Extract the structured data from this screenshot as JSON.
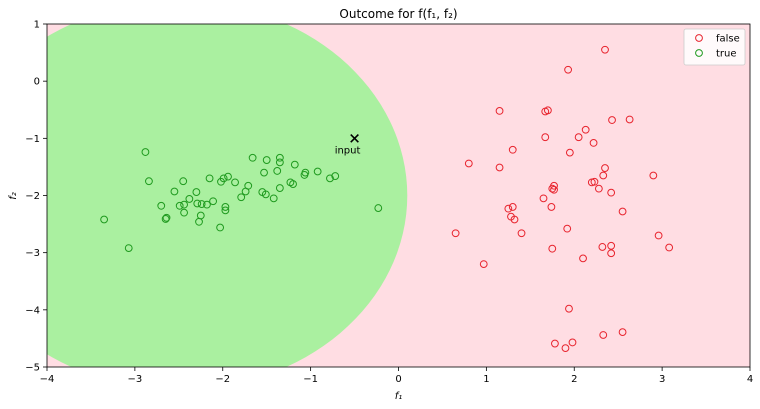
{
  "chart_data": {
    "type": "scatter",
    "title": "Outcome for f(f₁, f₂)",
    "xlabel": "f₁",
    "ylabel": "f₂",
    "xlim": [
      -4,
      4
    ],
    "ylim": [
      -5,
      1
    ],
    "xticks": [
      "−4",
      "−3",
      "−2",
      "−1",
      "0",
      "1",
      "2",
      "3",
      "4"
    ],
    "yticks": [
      "−5",
      "−4",
      "−3",
      "−2",
      "−1",
      "0",
      "1"
    ],
    "legend_position": "top-right",
    "background_regions": {
      "true_region_color": "#aaf0a0",
      "false_region_color": "#ffdde3",
      "boundary": "ellipse centered near (-2.5, -2.0), right edge at x≈0.1"
    },
    "series": [
      {
        "name": "false",
        "edge_color": "#e8242e",
        "points": [
          [
            2.35,
            0.55
          ],
          [
            1.93,
            0.2
          ],
          [
            1.15,
            -0.52
          ],
          [
            1.67,
            -0.53
          ],
          [
            1.7,
            -0.51
          ],
          [
            2.43,
            -0.68
          ],
          [
            2.63,
            -0.67
          ],
          [
            2.13,
            -0.85
          ],
          [
            1.67,
            -0.98
          ],
          [
            2.05,
            -0.98
          ],
          [
            2.22,
            -1.08
          ],
          [
            1.3,
            -1.2
          ],
          [
            1.95,
            -1.25
          ],
          [
            0.8,
            -1.44
          ],
          [
            1.15,
            -1.51
          ],
          [
            2.35,
            -1.52
          ],
          [
            2.33,
            -1.65
          ],
          [
            2.9,
            -1.65
          ],
          [
            2.2,
            -1.77
          ],
          [
            2.23,
            -1.76
          ],
          [
            1.77,
            -1.83
          ],
          [
            1.75,
            -1.88
          ],
          [
            1.77,
            -1.9
          ],
          [
            2.28,
            -1.88
          ],
          [
            2.42,
            -1.95
          ],
          [
            1.65,
            -2.05
          ],
          [
            1.74,
            -2.2
          ],
          [
            1.3,
            -2.2
          ],
          [
            1.25,
            -2.23
          ],
          [
            2.55,
            -2.28
          ],
          [
            1.28,
            -2.37
          ],
          [
            1.32,
            -2.42
          ],
          [
            1.92,
            -2.58
          ],
          [
            0.65,
            -2.66
          ],
          [
            1.4,
            -2.66
          ],
          [
            2.96,
            -2.7
          ],
          [
            2.42,
            -2.88
          ],
          [
            2.32,
            -2.9
          ],
          [
            3.08,
            -2.91
          ],
          [
            1.75,
            -2.93
          ],
          [
            2.42,
            -3.01
          ],
          [
            2.1,
            -3.1
          ],
          [
            0.97,
            -3.2
          ],
          [
            1.94,
            -3.98
          ],
          [
            2.55,
            -4.39
          ],
          [
            2.33,
            -4.44
          ],
          [
            1.98,
            -4.57
          ],
          [
            1.78,
            -4.59
          ],
          [
            1.9,
            -4.67
          ]
        ]
      },
      {
        "name": "true",
        "edge_color": "#1f9a1f",
        "points": [
          [
            -2.88,
            -1.24
          ],
          [
            -1.66,
            -1.34
          ],
          [
            -1.35,
            -1.34
          ],
          [
            -1.5,
            -1.38
          ],
          [
            -1.35,
            -1.42
          ],
          [
            -1.18,
            -1.46
          ],
          [
            -1.38,
            -1.57
          ],
          [
            -0.92,
            -1.58
          ],
          [
            -1.06,
            -1.6
          ],
          [
            -1.53,
            -1.6
          ],
          [
            -1.07,
            -1.64
          ],
          [
            -1.94,
            -1.67
          ],
          [
            -0.72,
            -1.66
          ],
          [
            -0.78,
            -1.7
          ],
          [
            -2.15,
            -1.7
          ],
          [
            -1.99,
            -1.7
          ],
          [
            -2.02,
            -1.76
          ],
          [
            -1.86,
            -1.77
          ],
          [
            -2.84,
            -1.75
          ],
          [
            -2.45,
            -1.75
          ],
          [
            -1.23,
            -1.77
          ],
          [
            -1.2,
            -1.8
          ],
          [
            -1.71,
            -1.83
          ],
          [
            -1.35,
            -1.87
          ],
          [
            -1.74,
            -1.93
          ],
          [
            -2.55,
            -1.93
          ],
          [
            -2.3,
            -1.94
          ],
          [
            -1.55,
            -1.94
          ],
          [
            -1.51,
            -1.98
          ],
          [
            -1.79,
            -2.03
          ],
          [
            -2.38,
            -2.06
          ],
          [
            -1.42,
            -2.05
          ],
          [
            -2.11,
            -2.1
          ],
          [
            -2.29,
            -2.14
          ],
          [
            -2.24,
            -2.15
          ],
          [
            -2.44,
            -2.16
          ],
          [
            -2.7,
            -2.18
          ],
          [
            -2.18,
            -2.16
          ],
          [
            -2.49,
            -2.18
          ],
          [
            -1.97,
            -2.2
          ],
          [
            -1.97,
            -2.26
          ],
          [
            -0.23,
            -2.22
          ],
          [
            -2.44,
            -2.3
          ],
          [
            -2.25,
            -2.35
          ],
          [
            -2.64,
            -2.39
          ],
          [
            -2.65,
            -2.41
          ],
          [
            -3.35,
            -2.42
          ],
          [
            -2.27,
            -2.46
          ],
          [
            -2.03,
            -2.56
          ],
          [
            -3.07,
            -2.92
          ]
        ]
      }
    ],
    "annotations": [
      {
        "text": "input",
        "marker": "x",
        "x": -0.5,
        "y": -1.0
      }
    ]
  }
}
